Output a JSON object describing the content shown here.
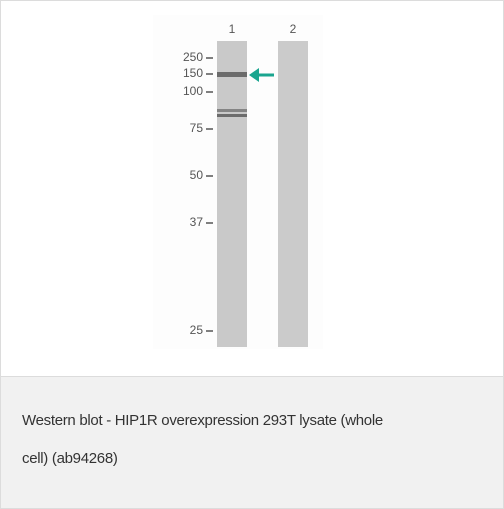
{
  "figure": {
    "lanes": [
      "1",
      "2"
    ],
    "markers": [
      "250",
      "150",
      "100",
      "75",
      "50",
      "37",
      "25"
    ]
  },
  "caption": "Western blot - HIP1R overexpression 293T lysate (whole cell) (ab94268)"
}
